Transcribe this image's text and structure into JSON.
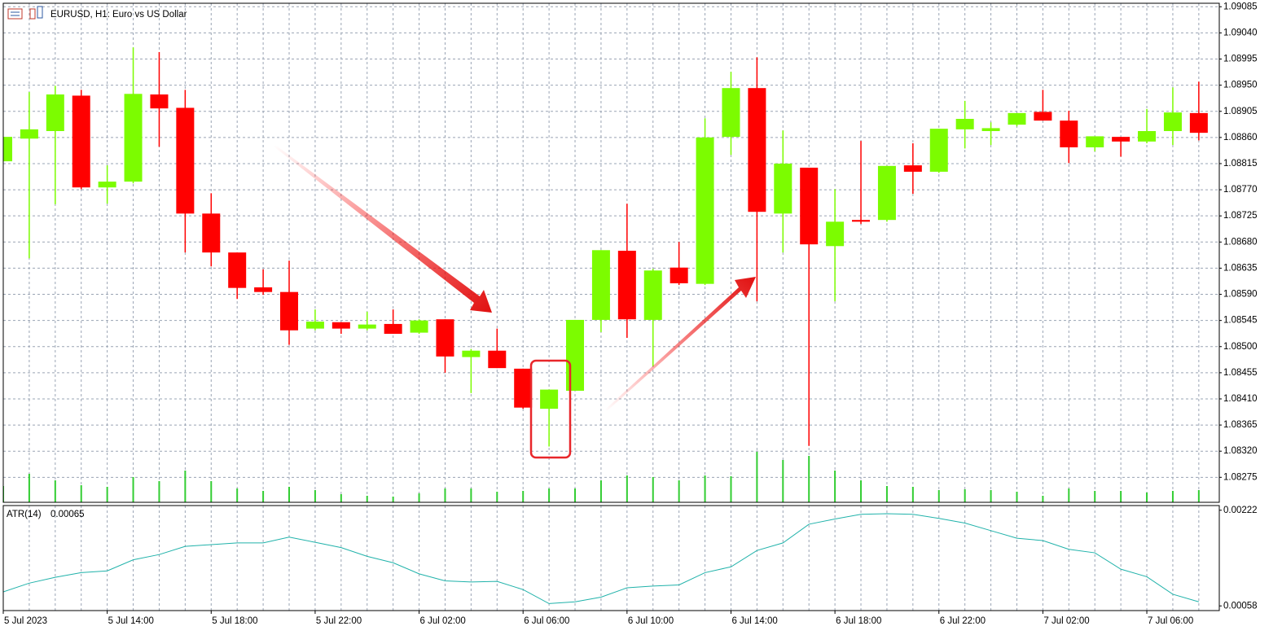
{
  "chart_data": {
    "type": "candlestick",
    "title": "EURUSD, H1:  Euro vs US Dollar",
    "categories": [
      "5 Jul 2023",
      null,
      null,
      null,
      "5 Jul 14:00",
      null,
      null,
      null,
      "5 Jul 18:00",
      null,
      null,
      null,
      "5 Jul 22:00",
      null,
      null,
      null,
      "6 Jul 02:00",
      null,
      null,
      null,
      "6 Jul 06:00",
      null,
      null,
      null,
      "6 Jul 10:00",
      null,
      null,
      null,
      "6 Jul 14:00",
      null,
      null,
      null,
      "6 Jul 18:00",
      null,
      null,
      null,
      "6 Jul 22:00",
      null,
      null,
      null,
      "7 Jul 02:00",
      null,
      null,
      null,
      "7 Jul 06:00",
      null,
      null
    ],
    "open": [
      1.08819,
      1.08858,
      1.08871,
      1.08932,
      1.08774,
      1.08784,
      1.08934,
      1.08911,
      1.08729,
      1.08662,
      1.08602,
      1.08594,
      1.08531,
      1.08542,
      1.08531,
      1.08539,
      1.08524,
      1.08547,
      1.08482,
      1.08493,
      1.08462,
      1.08393,
      1.08424,
      1.08546,
      1.08665,
      1.08546,
      1.08636,
      1.08608,
      1.08861,
      1.08945,
      1.08729,
      1.08808,
      1.08673,
      1.08718,
      1.08718,
      1.08812,
      1.08801,
      1.08874,
      1.08871,
      1.08882,
      1.08904,
      1.08889,
      1.08843,
      1.08861,
      1.08853,
      1.08871,
      1.08902
    ],
    "high": [
      1.08861,
      1.08938,
      1.08949,
      1.08942,
      1.08812,
      1.09015,
      1.09007,
      1.08942,
      1.08764,
      1.08662,
      1.08633,
      1.08648,
      1.08564,
      1.08542,
      1.0856,
      1.08564,
      1.08547,
      1.08547,
      1.08496,
      1.08531,
      1.08462,
      1.08426,
      1.08546,
      1.08666,
      1.08746,
      1.08634,
      1.0868,
      1.08893,
      1.08973,
      1.08998,
      1.08872,
      1.08808,
      1.08771,
      1.08854,
      1.08811,
      1.0885,
      1.08875,
      1.08923,
      1.08886,
      1.08902,
      1.08942,
      1.08906,
      1.08862,
      1.08861,
      1.08909,
      1.08946,
      1.08956
    ],
    "low": [
      1.08819,
      1.08652,
      1.08745,
      1.08771,
      1.08746,
      1.08781,
      1.08844,
      1.08662,
      1.08638,
      1.08582,
      1.08589,
      1.08503,
      1.08528,
      1.08522,
      1.08528,
      1.08522,
      1.08522,
      1.08455,
      1.0842,
      1.08463,
      1.08393,
      1.08328,
      1.08424,
      1.08525,
      1.08515,
      1.08466,
      1.08606,
      1.08606,
      1.0883,
      1.08578,
      1.08662,
      1.08329,
      1.08578,
      1.08711,
      1.08715,
      1.08763,
      1.08799,
      1.08841,
      1.08847,
      1.08879,
      1.08889,
      1.08816,
      1.08836,
      1.08827,
      1.0885,
      1.08847,
      1.08855
    ],
    "close": [
      1.08861,
      1.08874,
      1.08934,
      1.08774,
      1.08784,
      1.08935,
      1.0891,
      1.08729,
      1.08662,
      1.08601,
      1.08594,
      1.08528,
      1.08543,
      1.08531,
      1.08538,
      1.08522,
      1.08545,
      1.08483,
      1.08493,
      1.08463,
      1.08395,
      1.08426,
      1.08546,
      1.08666,
      1.08547,
      1.08631,
      1.08609,
      1.0886,
      1.08945,
      1.08732,
      1.08815,
      1.08676,
      1.08715,
      1.08715,
      1.08811,
      1.08801,
      1.08875,
      1.08892,
      1.08876,
      1.08902,
      1.08889,
      1.08843,
      1.08862,
      1.08853,
      1.08871,
      1.08903,
      1.08868
    ],
    "up_color": "#7cfc00",
    "down_color": "#ff0000",
    "ylim": [
      1.08232,
      1.09091
    ],
    "yticks": [
      {
        "value": 1.09085,
        "label": "1.09085"
      },
      {
        "value": 1.0904,
        "label": "1.09040"
      },
      {
        "value": 1.08995,
        "label": "1.08995"
      },
      {
        "value": 1.0895,
        "label": "1.08950"
      },
      {
        "value": 1.08905,
        "label": "1.08905"
      },
      {
        "value": 1.0886,
        "label": "1.08860"
      },
      {
        "value": 1.08815,
        "label": "1.08815"
      },
      {
        "value": 1.0877,
        "label": "1.08770"
      },
      {
        "value": 1.08725,
        "label": "1.08725"
      },
      {
        "value": 1.0868,
        "label": "1.08680"
      },
      {
        "value": 1.08635,
        "label": "1.08635"
      },
      {
        "value": 1.0859,
        "label": "1.08590"
      },
      {
        "value": 1.08545,
        "label": "1.08545"
      },
      {
        "value": 1.085,
        "label": "1.08500"
      },
      {
        "value": 1.08455,
        "label": "1.08455"
      },
      {
        "value": 1.0841,
        "label": "1.08410"
      },
      {
        "value": 1.08365,
        "label": "1.08365"
      },
      {
        "value": 1.0832,
        "label": "1.08320"
      },
      {
        "value": 1.08275,
        "label": "1.08275"
      }
    ],
    "grid": true,
    "volume": {
      "color": "#32cd32",
      "values": [
        2000,
        3500,
        2700,
        2100,
        1900,
        3100,
        2600,
        3900,
        2600,
        1700,
        1400,
        1900,
        1500,
        1000,
        800,
        700,
        1100,
        1700,
        1700,
        1300,
        1400,
        1700,
        1700,
        2700,
        3300,
        3100,
        2700,
        3300,
        3200,
        6200,
        5200,
        5700,
        3900,
        2700,
        2000,
        1900,
        1500,
        1600,
        1500,
        1300,
        800,
        1700,
        1400,
        1400,
        1200,
        1400,
        1500
      ]
    },
    "indicator": {
      "type": "line",
      "name": "ATR(14)",
      "value": 0.00065,
      "color": "#20b2aa",
      "values": [
        0.00082,
        0.00097,
        0.00107,
        0.00115,
        0.00118,
        0.00137,
        0.00146,
        0.0016,
        0.00163,
        0.00166,
        0.00166,
        0.00176,
        0.00167,
        0.00158,
        0.00143,
        0.00132,
        0.00113,
        0.00101,
        0.00099,
        0.001,
        0.00086,
        0.00062,
        0.00065,
        0.00073,
        0.00089,
        0.00092,
        0.00094,
        0.00115,
        0.00125,
        0.00153,
        0.00166,
        0.00198,
        0.00207,
        0.00215,
        0.00216,
        0.00215,
        0.00208,
        0.002,
        0.00187,
        0.00174,
        0.0017,
        0.00155,
        0.00149,
        0.00121,
        0.00108,
        0.00078,
        0.00065
      ],
      "ylim": [
        0.0005,
        0.0023
      ],
      "yticks": [
        0.00222,
        0.00058
      ]
    }
  }
}
